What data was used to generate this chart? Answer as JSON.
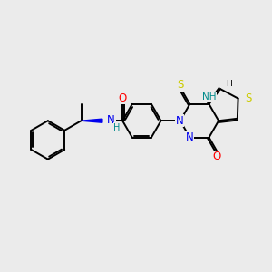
{
  "bg_color": "#ebebeb",
  "bond_color": "#000000",
  "bond_width": 1.4,
  "atom_colors": {
    "O": "#ff0000",
    "N": "#0000ee",
    "S": "#cccc00",
    "NH": "#008b8b",
    "C": "#000000"
  },
  "font_size": 8.5,
  "fig_size": [
    3.0,
    3.0
  ],
  "dpi": 100
}
